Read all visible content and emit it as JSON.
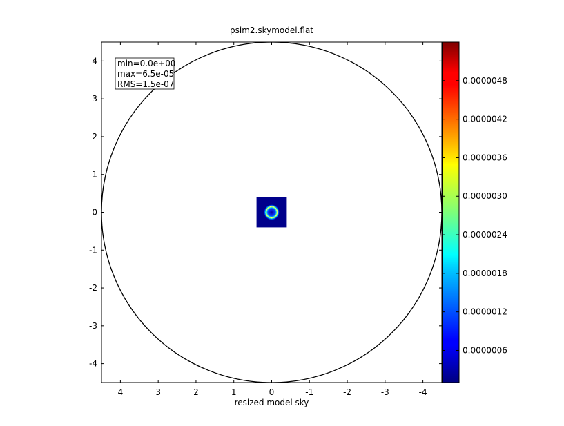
{
  "chart_data": {
    "type": "heatmap",
    "title": "psim2.skymodel.flat",
    "xlabel": "resized model sky",
    "ylabel": "",
    "xlim": [
      4.5,
      -4.5
    ],
    "ylim": [
      -4.5,
      4.5
    ],
    "x_ticks": [
      4,
      3,
      2,
      1,
      0,
      -1,
      -2,
      -3,
      -4
    ],
    "y_ticks": [
      4,
      3,
      2,
      1,
      0,
      -1,
      -2,
      -3,
      -4
    ],
    "grid": false,
    "stats": [
      "min=0.0e+00",
      "max=6.5e-05",
      "RMS=1.5e-07"
    ],
    "boundary_circle": {
      "center": [
        0,
        0
      ],
      "radius": 4.5
    },
    "image_extent": {
      "x": [
        0.4,
        -0.4
      ],
      "y": [
        -0.4,
        0.4
      ]
    },
    "ring": {
      "center": [
        0,
        0
      ],
      "radius": 0.15
    },
    "colorbar": {
      "colormap": "jet",
      "range": [
        1e-07,
        5.4e-06
      ],
      "ticks": [
        "0.0000006",
        "0.0000012",
        "0.0000018",
        "0.0000024",
        "0.0000030",
        "0.0000036",
        "0.0000042",
        "0.0000048"
      ],
      "tick_values": [
        6e-07,
        1.2e-06,
        1.8e-06,
        2.4e-06,
        3e-06,
        3.6e-06,
        4.2e-06,
        4.8e-06
      ]
    }
  }
}
